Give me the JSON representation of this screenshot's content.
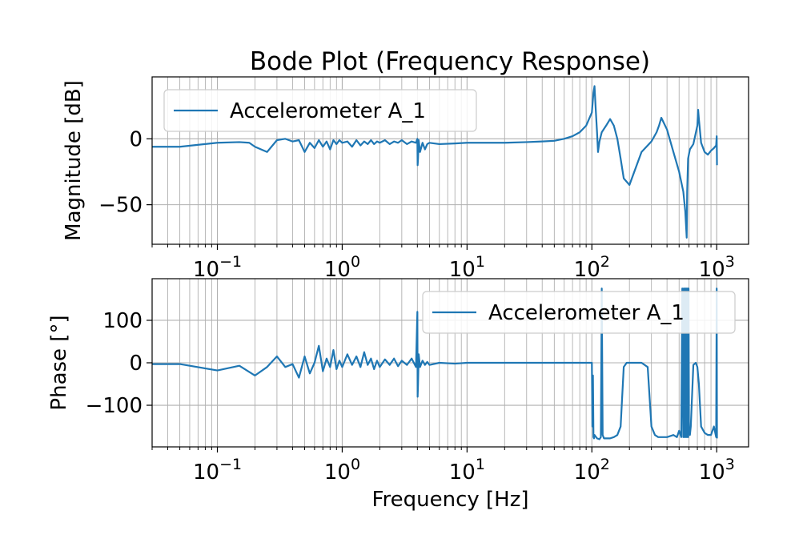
{
  "chart_data": [
    {
      "type": "line",
      "title": "Bode Plot (Frequency Response)",
      "xlabel": "",
      "ylabel": "Magnitude [dB]",
      "xscale": "log",
      "xlim": [
        0.03,
        1800
      ],
      "ylim": [
        -80,
        47
      ],
      "x_ticks": [
        {
          "value": 0.1,
          "base": "10",
          "exp": "−1"
        },
        {
          "value": 1,
          "base": "10",
          "exp": "0"
        },
        {
          "value": 10,
          "base": "10",
          "exp": "1"
        },
        {
          "value": 100,
          "base": "10",
          "exp": "2"
        },
        {
          "value": 1000,
          "base": "10",
          "exp": "3"
        }
      ],
      "y_ticks": [
        {
          "value": 0,
          "label": "0"
        },
        {
          "value": -50,
          "label": "−50"
        }
      ],
      "grid": true,
      "legend": "upper-left",
      "color": "#1f77b4",
      "series": [
        {
          "name": "Accelerometer A_1",
          "x": [
            0.03,
            0.05,
            0.1,
            0.15,
            0.18,
            0.2,
            0.25,
            0.3,
            0.35,
            0.4,
            0.45,
            0.5,
            0.55,
            0.6,
            0.65,
            0.7,
            0.75,
            0.8,
            0.85,
            0.9,
            0.95,
            1.0,
            1.1,
            1.2,
            1.3,
            1.4,
            1.5,
            1.6,
            1.7,
            1.8,
            1.9,
            2.0,
            2.2,
            2.4,
            2.6,
            2.8,
            3.0,
            3.3,
            3.6,
            3.9,
            4.0,
            4.02,
            4.05,
            4.1,
            4.2,
            4.4,
            4.6,
            4.8,
            5.0,
            6,
            8,
            10,
            15,
            20,
            30,
            40,
            50,
            60,
            70,
            80,
            90,
            100,
            103,
            105,
            107,
            110,
            112,
            115,
            120,
            130,
            140,
            150,
            160,
            170,
            180,
            200,
            250,
            300,
            330,
            345,
            360,
            400,
            450,
            500,
            540,
            560,
            575,
            580,
            590,
            610,
            650,
            700,
            710,
            720,
            750,
            800,
            850,
            900,
            950,
            990,
            1000,
            1005
          ],
          "y": [
            -6,
            -6,
            -3,
            -2.5,
            -3,
            -6,
            -10,
            -1,
            0,
            -2,
            -1,
            -10,
            -3,
            -7,
            -1,
            -6,
            -2,
            -8,
            -1,
            -4,
            -1,
            -3,
            -2,
            -6,
            -1,
            -5,
            -2,
            -4,
            -1,
            -4,
            -2,
            -3,
            -1,
            -4,
            -2,
            -3,
            -1,
            -4,
            -2,
            -3,
            0,
            -20,
            -15,
            -1,
            -10,
            -3,
            -8,
            -4,
            -3,
            -4,
            -3.5,
            -3,
            -3,
            -3,
            -2.5,
            -2,
            -1.5,
            0,
            2,
            5,
            10,
            20,
            35,
            40,
            25,
            5,
            -10,
            -2,
            5,
            10,
            15,
            10,
            0,
            -15,
            -30,
            -35,
            -10,
            -2,
            5,
            10,
            16,
            7,
            -10,
            -25,
            -40,
            -55,
            -75,
            -40,
            -15,
            -8,
            -4,
            10,
            22,
            15,
            -3,
            -10,
            -12,
            -9,
            -7,
            -5,
            2,
            -20
          ]
        }
      ]
    },
    {
      "type": "line",
      "xlabel": "Frequency [Hz]",
      "ylabel": "Phase [°]",
      "xscale": "log",
      "xlim": [
        0.03,
        1800
      ],
      "ylim": [
        -198,
        198
      ],
      "x_ticks": [
        {
          "value": 0.1,
          "base": "10",
          "exp": "−1"
        },
        {
          "value": 1,
          "base": "10",
          "exp": "0"
        },
        {
          "value": 10,
          "base": "10",
          "exp": "1"
        },
        {
          "value": 100,
          "base": "10",
          "exp": "2"
        },
        {
          "value": 1000,
          "base": "10",
          "exp": "3"
        }
      ],
      "y_ticks": [
        {
          "value": 100,
          "label": "100"
        },
        {
          "value": 0,
          "label": "0"
        },
        {
          "value": -100,
          "label": "−100"
        }
      ],
      "grid": true,
      "legend": "upper-right",
      "color": "#1f77b4",
      "series": [
        {
          "name": "Accelerometer A_1",
          "x": [
            0.03,
            0.05,
            0.1,
            0.15,
            0.2,
            0.25,
            0.3,
            0.35,
            0.4,
            0.45,
            0.5,
            0.55,
            0.6,
            0.65,
            0.7,
            0.75,
            0.8,
            0.85,
            0.9,
            0.95,
            1.0,
            1.1,
            1.2,
            1.3,
            1.4,
            1.5,
            1.6,
            1.7,
            1.8,
            1.9,
            2.0,
            2.2,
            2.4,
            2.6,
            2.8,
            3.0,
            3.3,
            3.6,
            3.9,
            4.0,
            4.02,
            4.05,
            4.1,
            4.2,
            4.4,
            4.6,
            4.8,
            5.0,
            6,
            8,
            10,
            20,
            40,
            60,
            80,
            100,
            101,
            102,
            103,
            104,
            105,
            110,
            115,
            118,
            120,
            122,
            125,
            140,
            150,
            160,
            170,
            180,
            190,
            250,
            280,
            300,
            320,
            340,
            350,
            400,
            450,
            480,
            500,
            520,
            530,
            540,
            545,
            550,
            555,
            560,
            565,
            570,
            575,
            580,
            585,
            590,
            595,
            600,
            610,
            620,
            650,
            680,
            700,
            720,
            750,
            800,
            850,
            900,
            950,
            990,
            1000,
            1005
          ],
          "y": [
            -3,
            -3,
            -18,
            -7,
            -30,
            -10,
            15,
            -10,
            -3,
            -35,
            15,
            -25,
            0,
            40,
            -20,
            10,
            -10,
            30,
            -15,
            5,
            -10,
            20,
            -5,
            15,
            -10,
            25,
            -5,
            10,
            -15,
            5,
            -10,
            8,
            -5,
            10,
            -8,
            5,
            -5,
            10,
            -10,
            120,
            -80,
            -50,
            20,
            -10,
            5,
            -5,
            2,
            -5,
            0,
            -2,
            0,
            0,
            0,
            0,
            0,
            0,
            -150,
            -30,
            -175,
            -178,
            -170,
            -178,
            -180,
            -175,
            175,
            -170,
            -178,
            -178,
            -175,
            -170,
            -150,
            -10,
            0,
            0,
            -10,
            -150,
            -170,
            -175,
            -175,
            -175,
            -170,
            -175,
            -160,
            -175,
            175,
            -175,
            175,
            -175,
            175,
            -175,
            175,
            -175,
            175,
            -175,
            175,
            -175,
            175,
            -165,
            -170,
            -150,
            -5,
            0,
            -10,
            -50,
            -150,
            -165,
            -170,
            -170,
            -150,
            -175,
            175,
            -178
          ]
        }
      ]
    }
  ]
}
